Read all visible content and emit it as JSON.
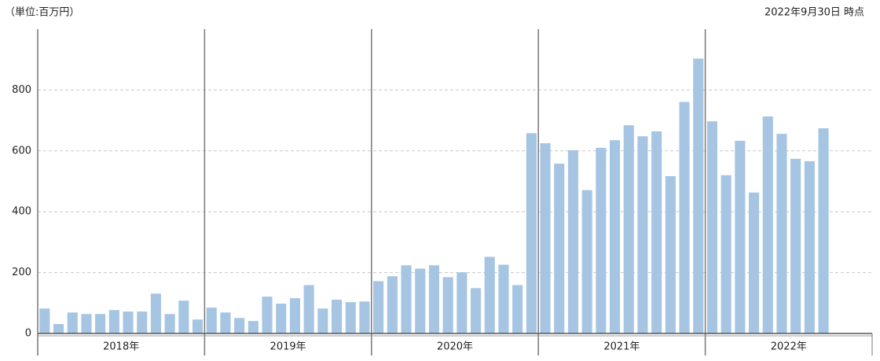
{
  "chart_data": {
    "type": "grouped-bar",
    "unit_note": "（単位:百万円）",
    "as_of": "2022年9月30日 時点",
    "color": "#a6c5e3",
    "slots_per_group": 12,
    "ylim": [
      0,
      1000
    ],
    "yticks": [
      0,
      200,
      400,
      600,
      800
    ],
    "grid": true,
    "groups": [
      {
        "label": "2018年",
        "values": [
          82,
          31,
          69,
          64,
          64,
          77,
          72,
          72,
          131,
          64,
          108,
          46
        ]
      },
      {
        "label": "2019年",
        "values": [
          85,
          69,
          51,
          41,
          121,
          98,
          116,
          159,
          82,
          111,
          103,
          105
        ]
      },
      {
        "label": "2020年",
        "values": [
          172,
          188,
          224,
          213,
          224,
          185,
          201,
          149,
          252,
          226,
          159,
          658
        ]
      },
      {
        "label": "2021年",
        "values": [
          625,
          558,
          602,
          471,
          610,
          635,
          684,
          648,
          664,
          517,
          761,
          903
        ]
      },
      {
        "label": "2022年",
        "values": [
          697,
          520,
          633,
          463,
          713,
          656,
          574,
          566,
          674
        ]
      }
    ]
  }
}
